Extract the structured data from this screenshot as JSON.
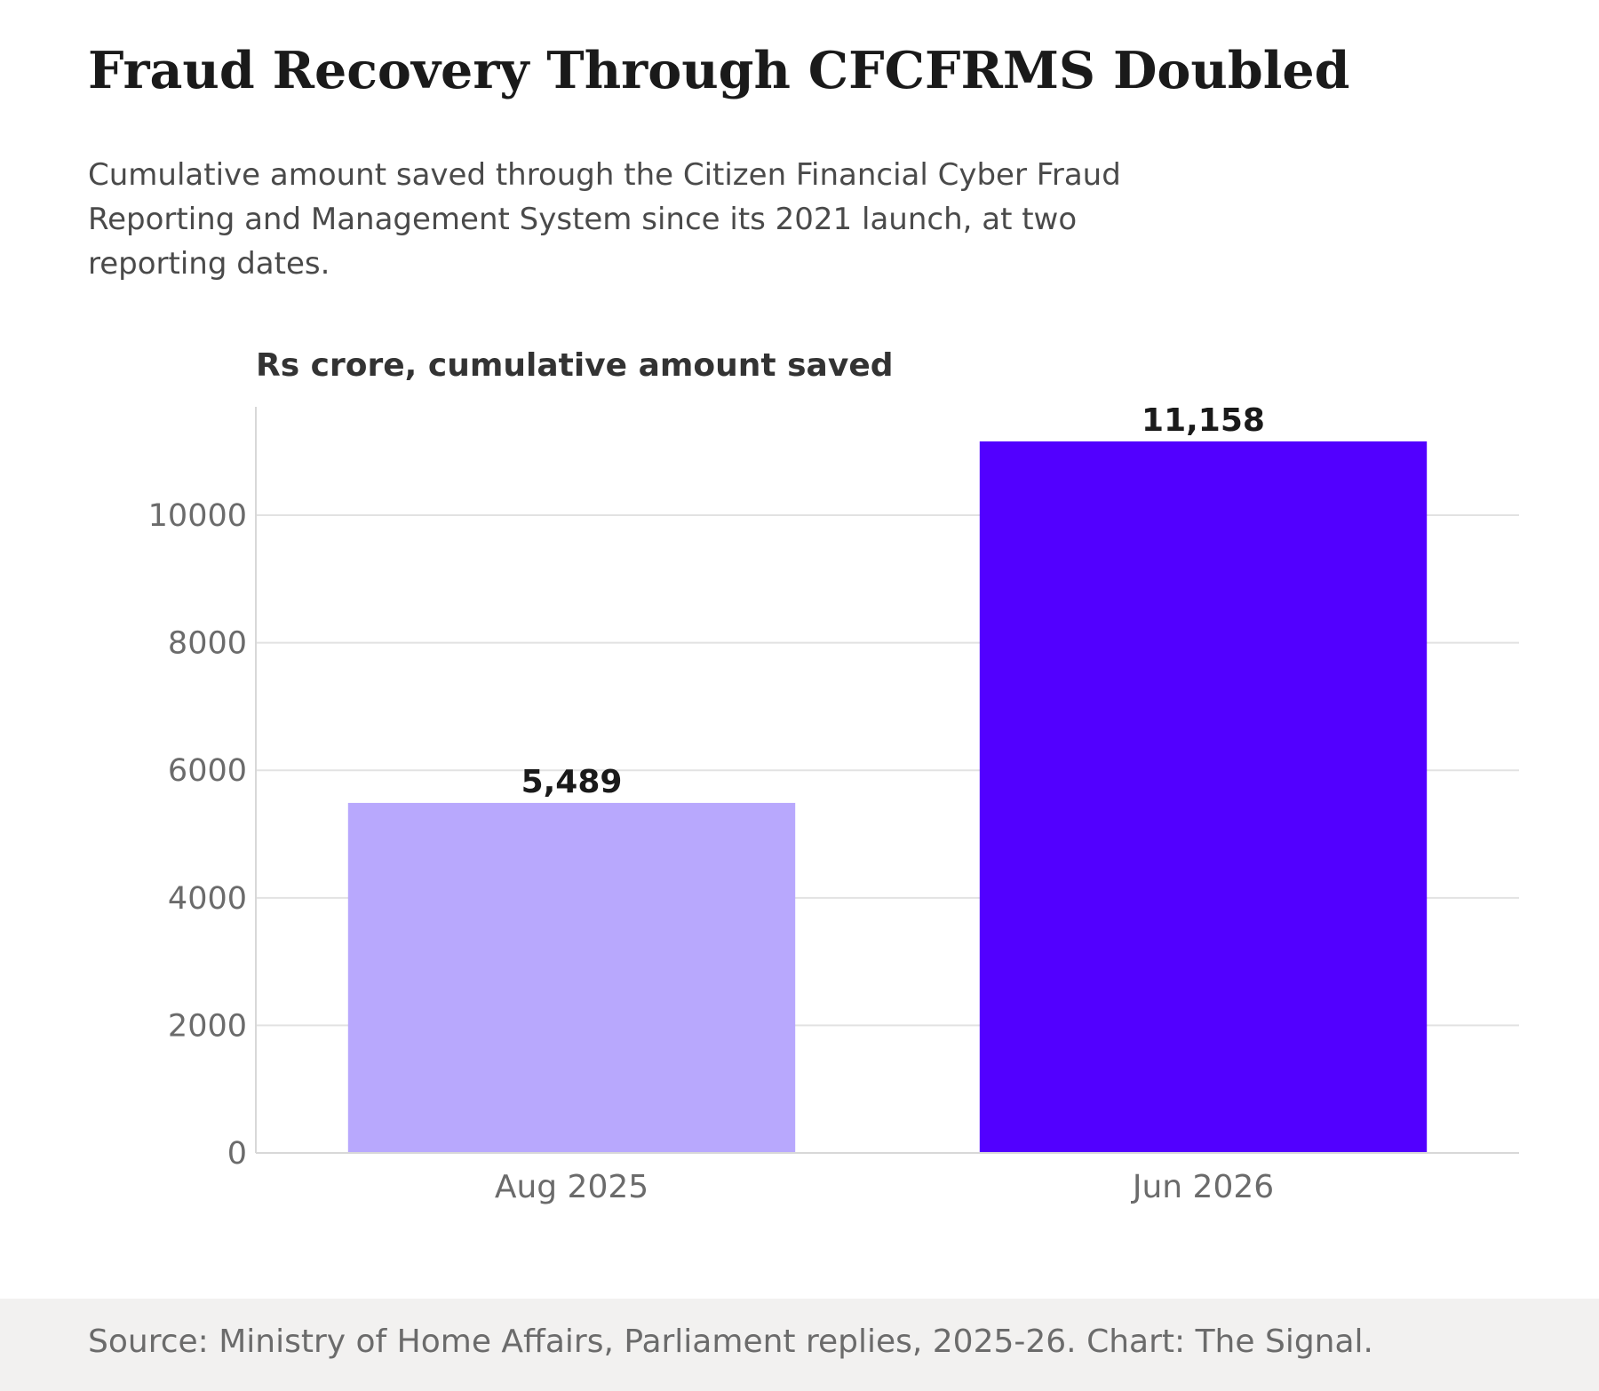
{
  "header": {
    "title": "Fraud Recovery Through CFCFRMS Doubled",
    "subtitle": "Cumulative amount saved through the Citizen Financial Cyber Fraud Reporting and Management System since its 2021 launch, at two reporting dates."
  },
  "chart_data": {
    "type": "bar",
    "unit_label": "Rs crore, cumulative amount saved",
    "categories": [
      "Aug 2025",
      "Jun 2026"
    ],
    "values": [
      5489,
      11158
    ],
    "data_labels": [
      "5,489",
      "11,158"
    ],
    "bar_colors": [
      "#b8a8fd",
      "#5200ff"
    ],
    "ylim": [
      0,
      11700
    ],
    "yticks": [
      0,
      2000,
      4000,
      6000,
      8000,
      10000
    ],
    "grid": true,
    "legend": "none"
  },
  "footer": {
    "source": "Source: Ministry of Home Affairs, Parliament replies, 2025-26. Chart: The Signal."
  }
}
